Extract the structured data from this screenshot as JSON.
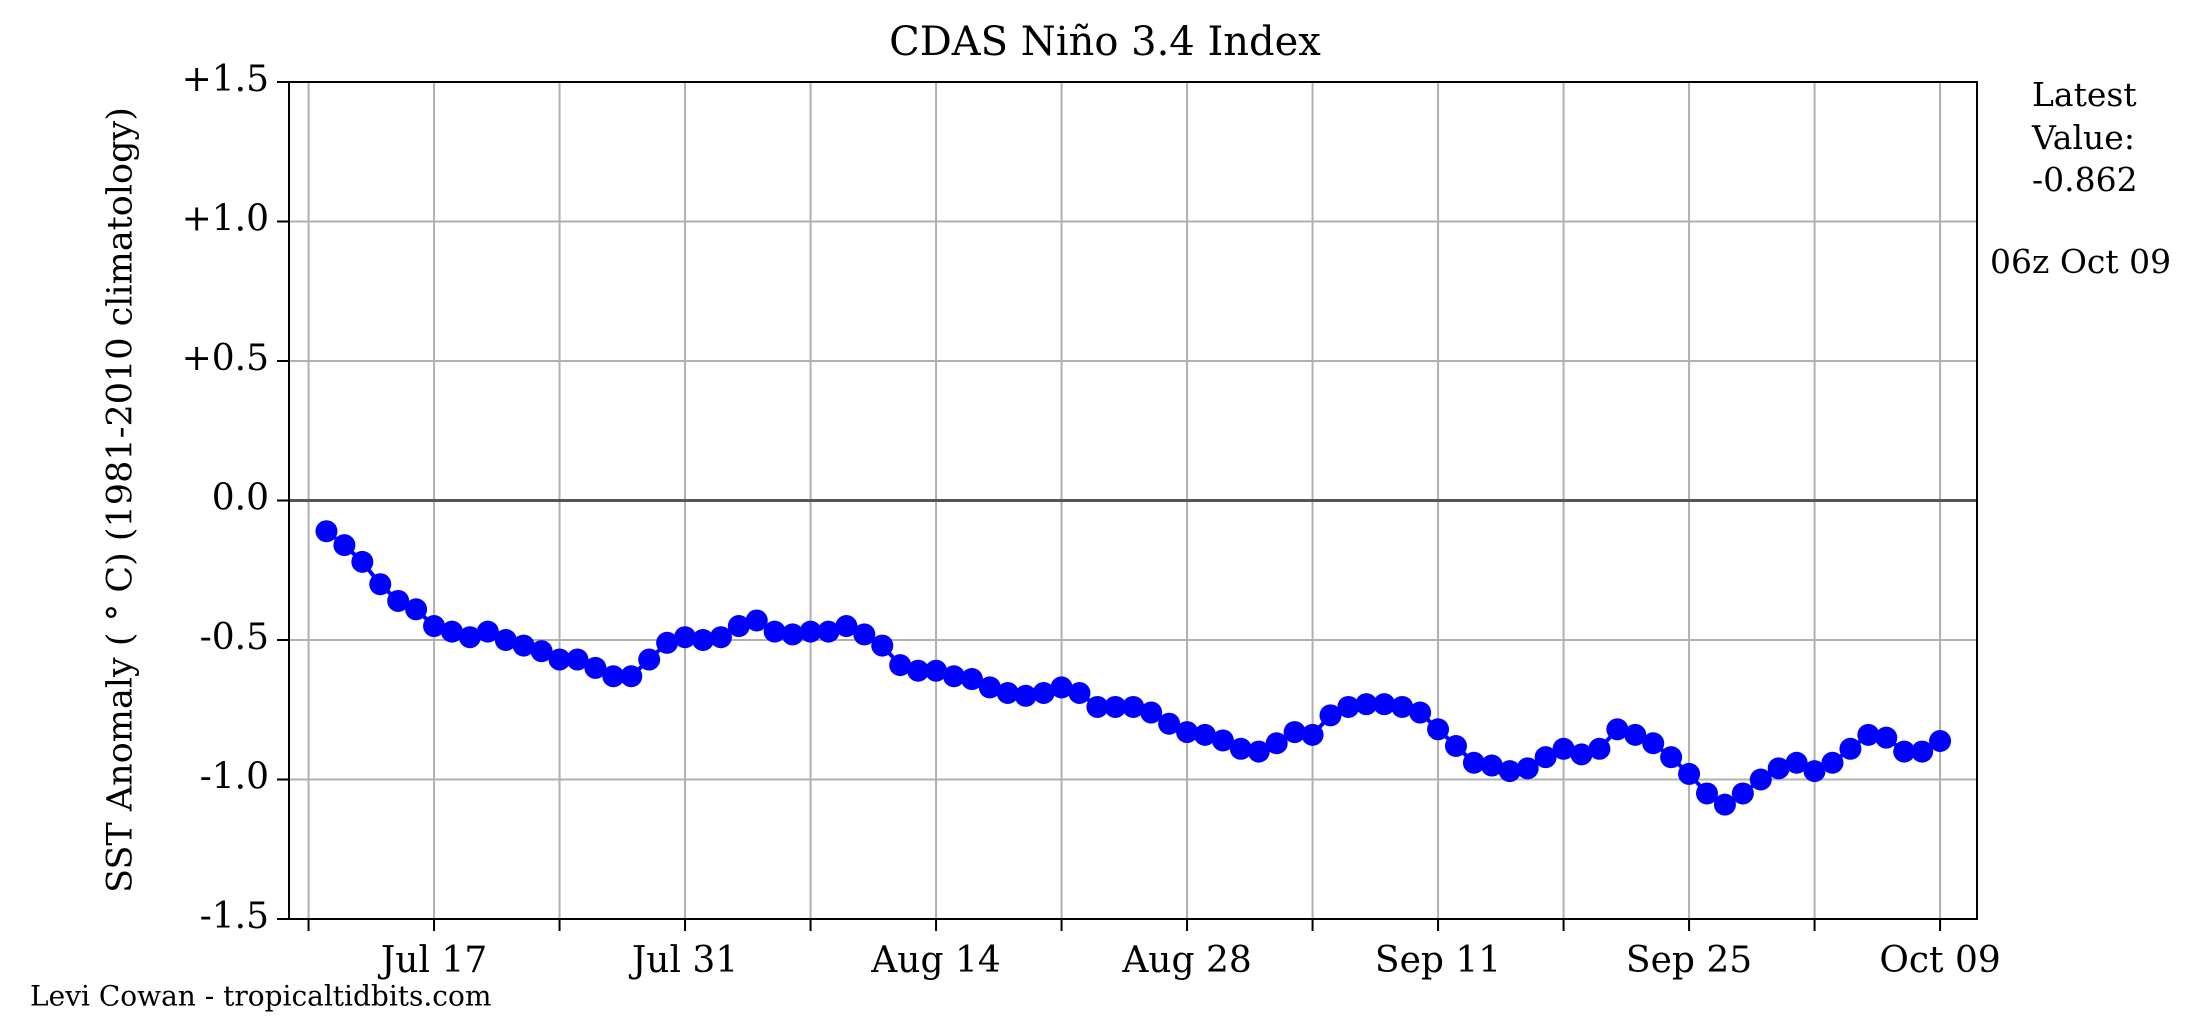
{
  "chart_data": {
    "type": "line",
    "title": "CDAS Niño 3.4 Index",
    "y_label": "SST Anomaly ( ° C) (1981-2010 climatology)",
    "categories": [
      null,
      null,
      null,
      null,
      null,
      null,
      "Jul 17",
      null,
      null,
      null,
      null,
      null,
      null,
      null,
      null,
      null,
      null,
      null,
      null,
      null,
      "Jul 31",
      null,
      null,
      null,
      null,
      null,
      null,
      null,
      null,
      null,
      null,
      null,
      null,
      null,
      "Aug 14",
      null,
      null,
      null,
      null,
      null,
      null,
      null,
      null,
      null,
      null,
      null,
      null,
      null,
      "Aug 28",
      null,
      null,
      null,
      null,
      null,
      null,
      null,
      null,
      null,
      null,
      null,
      null,
      null,
      "Sep 11",
      null,
      null,
      null,
      null,
      null,
      null,
      null,
      null,
      null,
      null,
      null,
      null,
      null,
      "Sep 25",
      null,
      null,
      null,
      null,
      null,
      null,
      null,
      null,
      null,
      null,
      null,
      null,
      null,
      "Oct 09"
    ],
    "series": [
      {
        "color": "#0000ff",
        "values": [
          -0.11,
          -0.16,
          -0.22,
          -0.3,
          -0.36,
          -0.39,
          -0.45,
          -0.47,
          -0.49,
          -0.47,
          -0.5,
          -0.52,
          -0.54,
          -0.57,
          -0.57,
          -0.6,
          -0.63,
          -0.63,
          -0.57,
          -0.51,
          -0.49,
          -0.5,
          -0.49,
          -0.45,
          -0.43,
          -0.47,
          -0.48,
          -0.47,
          -0.47,
          -0.45,
          -0.48,
          -0.52,
          -0.59,
          -0.61,
          -0.61,
          -0.63,
          -0.64,
          -0.67,
          -0.69,
          -0.7,
          -0.69,
          -0.67,
          -0.69,
          -0.74,
          -0.74,
          -0.74,
          -0.76,
          -0.8,
          -0.83,
          -0.84,
          -0.86,
          -0.89,
          -0.9,
          -0.87,
          -0.83,
          -0.84,
          -0.77,
          -0.74,
          -0.73,
          -0.73,
          -0.74,
          -0.76,
          -0.82,
          -0.88,
          -0.94,
          -0.95,
          -0.97,
          -0.96,
          -0.92,
          -0.89,
          -0.91,
          -0.89,
          -0.82,
          -0.84,
          -0.87,
          -0.92,
          -0.98,
          -1.05,
          -1.09,
          -1.05,
          -1.0,
          -0.96,
          -0.94,
          -0.97,
          -0.94,
          -0.89,
          -0.84,
          -0.85,
          -0.9,
          -0.9,
          -0.862
        ]
      }
    ],
    "ylim": [
      -1.5,
      1.5
    ],
    "yticks": [
      {
        "value": -1.5,
        "label": "-1.5"
      },
      {
        "value": -1.0,
        "label": "-1.0"
      },
      {
        "value": -0.5,
        "label": "-0.5"
      },
      {
        "value": 0,
        "label": "0.0"
      },
      {
        "value": 0.5,
        "label": "+0.5"
      },
      {
        "value": 1.0,
        "label": "+1.0"
      },
      {
        "value": 1.5,
        "label": "+1.5"
      }
    ],
    "grid": true,
    "annotations": [
      "Latest",
      "Value:",
      "-0.862",
      "06z Oct 09"
    ],
    "credit": "Levi Cowan - tropicaltidbits.com"
  }
}
